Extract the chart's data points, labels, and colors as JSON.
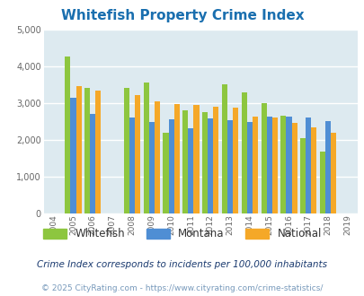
{
  "title": "Whitefish Property Crime Index",
  "title_color": "#1a6faf",
  "years": [
    2004,
    2005,
    2006,
    2007,
    2008,
    2009,
    2010,
    2011,
    2012,
    2013,
    2014,
    2015,
    2016,
    2017,
    2018,
    2019
  ],
  "whitefish": [
    null,
    4270,
    3400,
    null,
    3400,
    3550,
    2200,
    2800,
    2750,
    3500,
    3300,
    3000,
    2650,
    2050,
    1670,
    null
  ],
  "montana": [
    null,
    3150,
    2700,
    null,
    2600,
    2480,
    2550,
    2320,
    2575,
    2540,
    2480,
    2620,
    2640,
    2600,
    2510,
    null
  ],
  "national": [
    null,
    3450,
    3340,
    null,
    3220,
    3040,
    2960,
    2940,
    2900,
    2870,
    2620,
    2600,
    2460,
    2340,
    2200,
    null
  ],
  "colors": {
    "whitefish": "#8dc63f",
    "montana": "#4f8ed4",
    "national": "#f5a828"
  },
  "ylim": [
    0,
    5000
  ],
  "yticks": [
    0,
    1000,
    2000,
    3000,
    4000,
    5000
  ],
  "plot_bg": "#ddeaf0",
  "grid_color": "#ffffff",
  "legend_labels": [
    "Whitefish",
    "Montana",
    "National"
  ],
  "footnote1": "Crime Index corresponds to incidents per 100,000 inhabitants",
  "footnote2": "© 2025 CityRating.com - https://www.cityrating.com/crime-statistics/",
  "footnote1_color": "#1a3a6f",
  "footnote2_color": "#7799bb",
  "bar_width": 0.28
}
